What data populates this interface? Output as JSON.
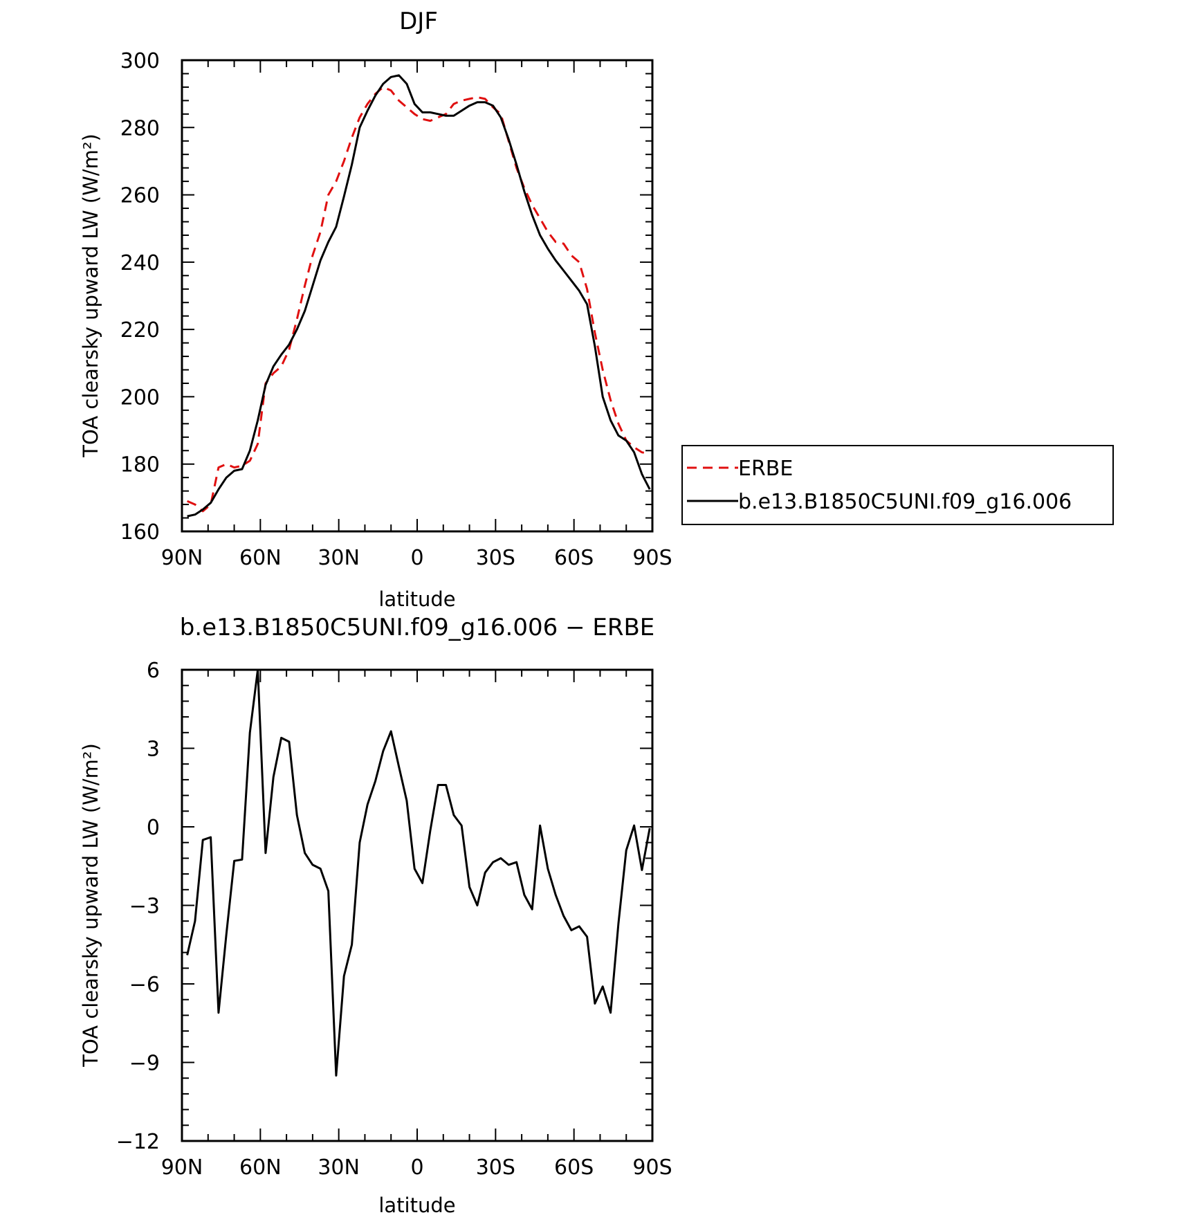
{
  "chart_data": [
    {
      "type": "line",
      "title": "DJF",
      "xlabel": "latitude",
      "ylabel": "TOA clearsky upward LW (W/m²)",
      "xlim": [
        90,
        -90
      ],
      "ylim": [
        160,
        300
      ],
      "xticks": [
        90,
        60,
        30,
        0,
        -30,
        -60,
        -90
      ],
      "xtick_labels": [
        "90N",
        "60N",
        "30N",
        "0",
        "30S",
        "60S",
        "90S"
      ],
      "yticks": [
        160,
        180,
        200,
        220,
        240,
        260,
        280,
        300
      ],
      "ytick_labels": [
        "160",
        "180",
        "200",
        "220",
        "240",
        "260",
        "280",
        "300"
      ],
      "legend_position": "right",
      "legend": [
        "ERBE",
        "b.e13.B1850C5UNI.f09_g16.006"
      ],
      "series": [
        {
          "name": "ERBE",
          "color": "#e01010",
          "style": "dashed",
          "x": [
            88,
            85,
            82,
            79,
            76,
            73,
            70,
            67,
            64,
            61,
            58,
            55,
            52,
            49,
            46,
            43,
            40,
            37,
            34,
            31,
            28,
            25,
            22,
            19,
            16,
            13,
            10,
            7,
            4,
            1,
            -2,
            -5,
            -8,
            -11,
            -14,
            -17,
            -20,
            -23,
            -26,
            -29,
            -32,
            -35,
            -38,
            -41,
            -44,
            -47,
            -50,
            -53,
            -56,
            -59,
            -62,
            -65,
            -68,
            -71,
            -74,
            -77,
            -80,
            -83,
            -86,
            -89
          ],
          "y": [
            169,
            168,
            166,
            168,
            179,
            180,
            179,
            179.5,
            181,
            186,
            204,
            207,
            209,
            214,
            223,
            233,
            242,
            249,
            260,
            264,
            270,
            277,
            283,
            287,
            290,
            292,
            291,
            288,
            286,
            284,
            282.5,
            282,
            283,
            284,
            287,
            288,
            288.5,
            289,
            288.5,
            286,
            284,
            276,
            268,
            262,
            257,
            253,
            249,
            246,
            245.5,
            242,
            240,
            232,
            219,
            208,
            199,
            192,
            187,
            185,
            183.5,
            183
          ]
        },
        {
          "name": "b.e13.B1850C5UNI.f09_g16.006",
          "color": "#000000",
          "style": "solid",
          "x": [
            88,
            85,
            82,
            79,
            76,
            73,
            70,
            67,
            64,
            61,
            58,
            55,
            52,
            49,
            46,
            43,
            40,
            37,
            34,
            31,
            28,
            25,
            22,
            19,
            16,
            13,
            10,
            7,
            4,
            1,
            -2,
            -5,
            -8,
            -11,
            -14,
            -17,
            -20,
            -23,
            -26,
            -29,
            -32,
            -35,
            -38,
            -41,
            -44,
            -47,
            -50,
            -53,
            -56,
            -59,
            -62,
            -65,
            -68,
            -71,
            -74,
            -77,
            -80,
            -83,
            -86,
            -89
          ],
          "y": [
            164.5,
            165,
            166.5,
            168.5,
            172.5,
            176,
            178,
            178.5,
            184,
            193,
            203.5,
            209,
            212.5,
            215.5,
            220,
            225.5,
            233,
            240.5,
            246,
            250.5,
            259.5,
            269,
            280,
            285,
            289.5,
            293,
            295,
            295.5,
            293,
            287,
            284.5,
            284.5,
            284,
            283.5,
            283.5,
            285,
            286.5,
            287.5,
            287.5,
            286.5,
            283,
            276.5,
            269,
            261,
            254,
            248,
            244,
            240.5,
            237.5,
            234.5,
            231.5,
            227.5,
            215,
            200,
            193,
            188.5,
            187,
            183.5,
            177,
            172.5
          ]
        }
      ]
    },
    {
      "type": "line",
      "title": "b.e13.B1850C5UNI.f09_g16.006 − ERBE",
      "xlabel": "latitude",
      "ylabel": "TOA clearsky upward LW (W/m²)",
      "xlim": [
        90,
        -90
      ],
      "ylim": [
        -12,
        6
      ],
      "xticks": [
        90,
        60,
        30,
        0,
        -30,
        -60,
        -90
      ],
      "xtick_labels": [
        "90N",
        "60N",
        "30N",
        "0",
        "30S",
        "60S",
        "90S"
      ],
      "yticks": [
        -12,
        -9,
        -6,
        -3,
        0,
        3,
        6
      ],
      "ytick_labels": [
        "−12",
        "−9",
        "−6",
        "−3",
        "0",
        "3",
        "6"
      ],
      "series": [
        {
          "color": "#000000",
          "style": "solid",
          "x": [
            88,
            85,
            82,
            79,
            76,
            73,
            70,
            67,
            64,
            61,
            58,
            55,
            52,
            49,
            46,
            43,
            40,
            37,
            34,
            31,
            28,
            25,
            22,
            19,
            16,
            13,
            10,
            7,
            4,
            1,
            -2,
            -5,
            -8,
            -11,
            -14,
            -17,
            -20,
            -23,
            -26,
            -29,
            -32,
            -35,
            -38,
            -41,
            -44,
            -47,
            -50,
            -53,
            -56,
            -59,
            -62,
            -65,
            -68,
            -71,
            -74,
            -77,
            -80,
            -83,
            -86,
            -89
          ],
          "y": [
            -4.9,
            -3.6,
            -0.5,
            -0.4,
            -7.1,
            -4.1,
            -1.3,
            -1.25,
            3.6,
            6.0,
            -1.0,
            1.9,
            3.4,
            3.25,
            0.45,
            -1.0,
            -1.45,
            -1.6,
            -2.45,
            -9.5,
            -5.7,
            -4.5,
            -0.6,
            0.85,
            1.75,
            2.9,
            3.65,
            2.3,
            1.0,
            -1.6,
            -2.15,
            -0.15,
            1.6,
            1.6,
            0.45,
            0.05,
            -2.3,
            -3.0,
            -1.75,
            -1.35,
            -1.2,
            -1.45,
            -1.35,
            -2.6,
            -3.15,
            0.05,
            -1.6,
            -2.6,
            -3.4,
            -3.95,
            -3.8,
            -4.2,
            -6.75,
            -6.1,
            -7.1,
            -3.7,
            -0.9,
            0.05,
            -1.65,
            -0.05
          ]
        }
      ]
    }
  ]
}
